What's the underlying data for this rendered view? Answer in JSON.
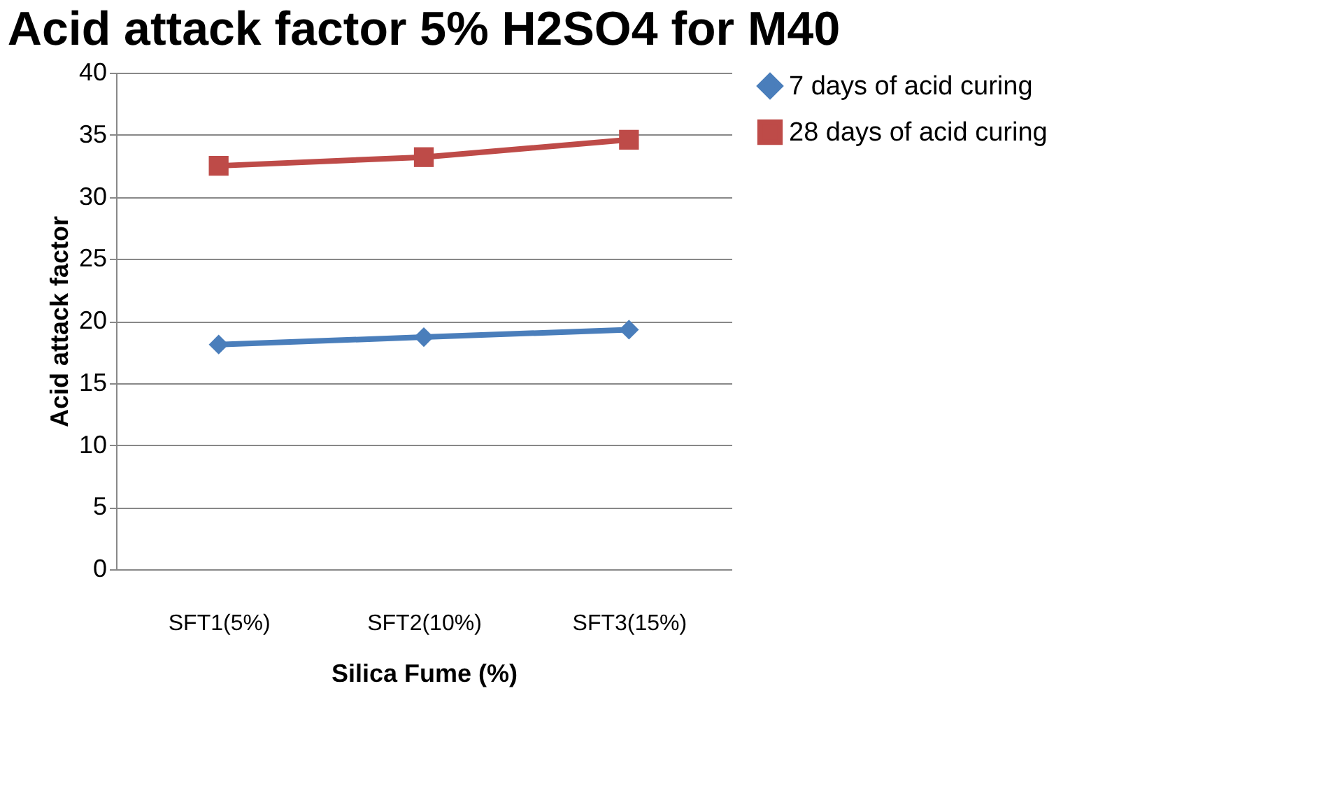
{
  "chart_data": {
    "type": "line",
    "title": "Acid attack factor 5% H2SO4 for M40",
    "xlabel": "Silica Fume (%)",
    "ylabel": "Acid attack factor",
    "categories": [
      "SFT1(5%)",
      "SFT2(10%)",
      "SFT3(15%)"
    ],
    "series": [
      {
        "name": "7 days of acid curing",
        "color": "#4a7ebb",
        "values": [
          18.1,
          18.7,
          19.3
        ],
        "marker": "diamond"
      },
      {
        "name": "28 days of acid curing",
        "color": "#be4b48",
        "values": [
          32.5,
          33.2,
          34.6
        ],
        "marker": "square"
      }
    ],
    "ylim": [
      0,
      40
    ],
    "yticks": [
      0,
      5,
      10,
      15,
      20,
      25,
      30,
      35,
      40
    ],
    "grid": "y",
    "legend": "right",
    "line_style": "solid"
  }
}
